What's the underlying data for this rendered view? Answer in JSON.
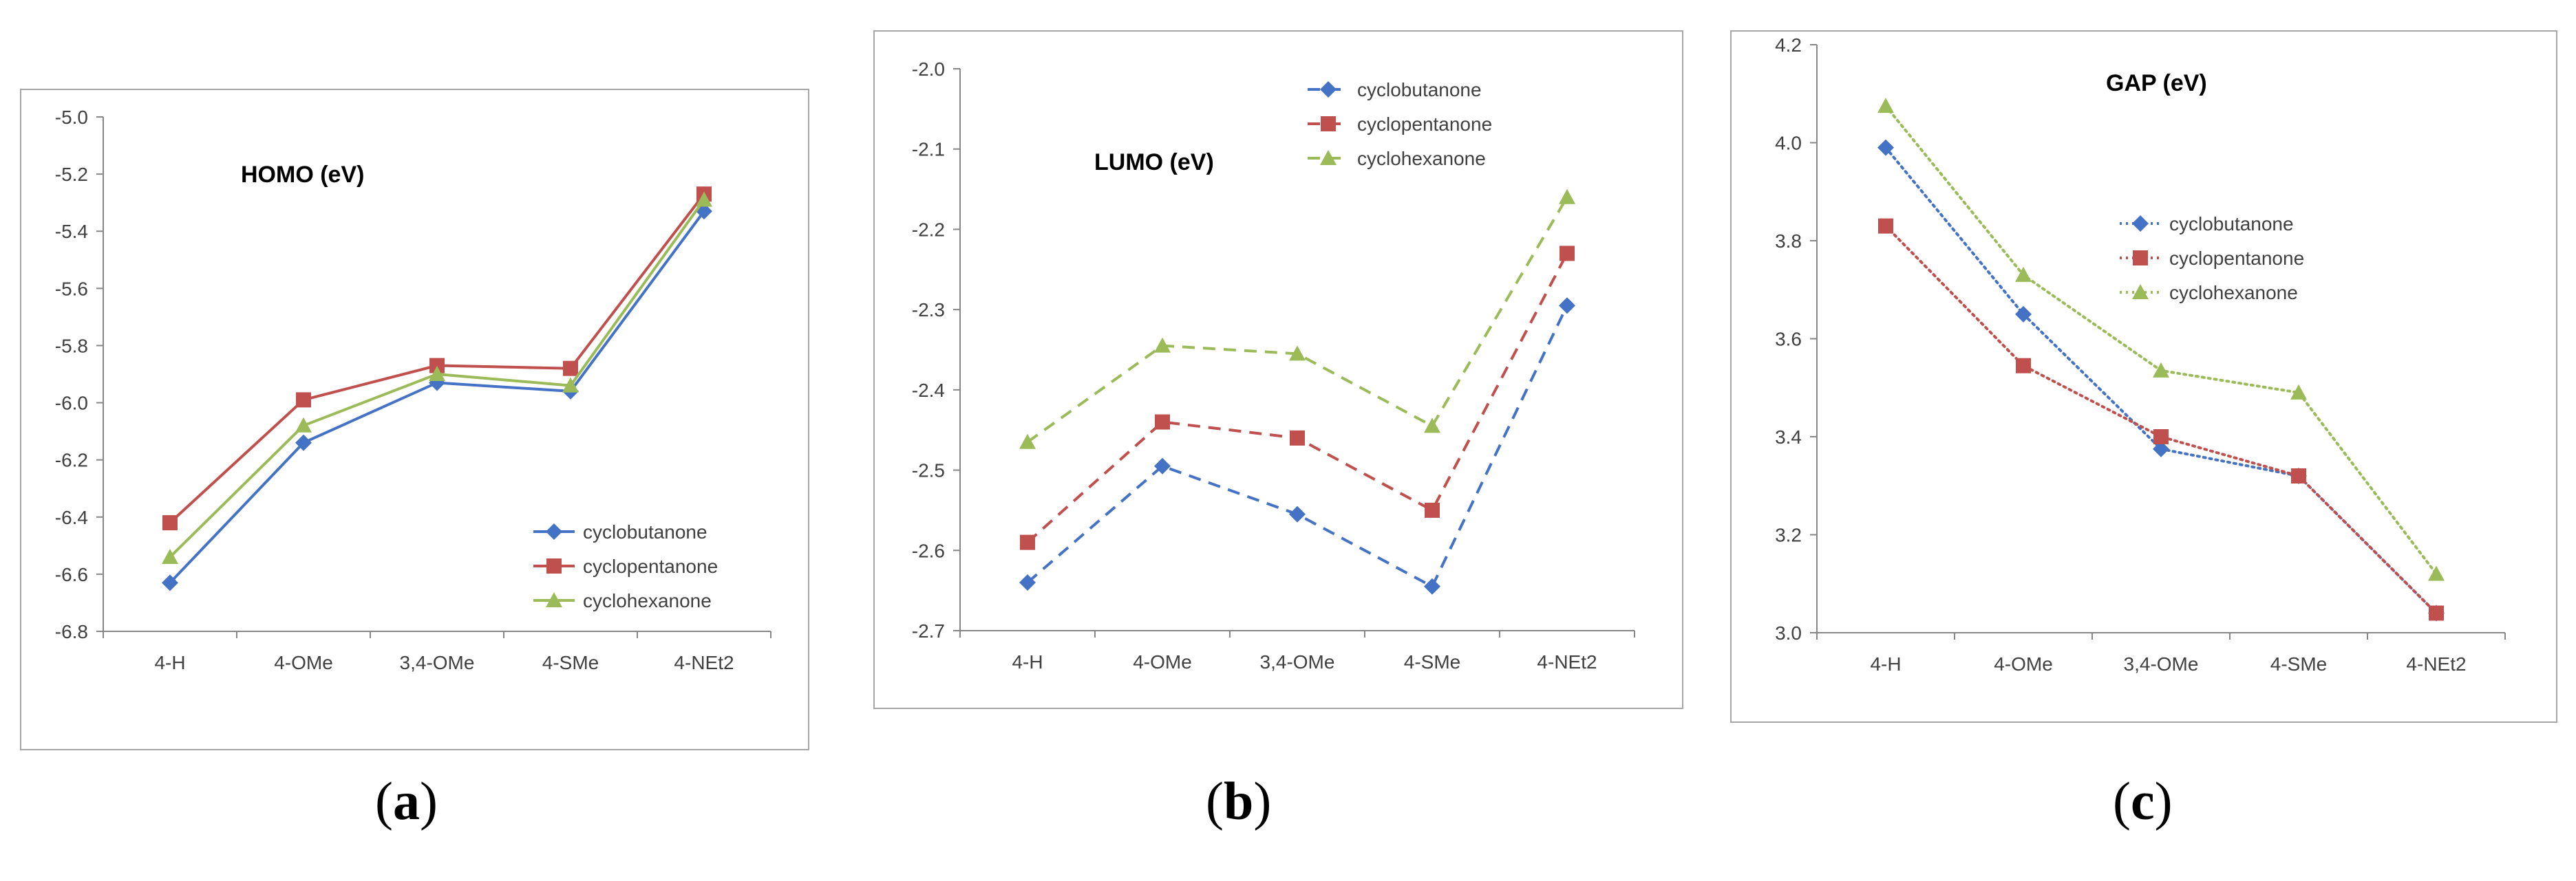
{
  "chart_data": [
    {
      "type": "line",
      "title": "HOMO (eV)",
      "categories": [
        "4-H",
        "4-OMe",
        "3,4-OMe",
        "4-SMe",
        "4-NEt2"
      ],
      "series": [
        {
          "name": "cyclobutanone",
          "color": "#4472c4",
          "marker": "diamond",
          "dash": "solid",
          "values": [
            -6.63,
            -6.14,
            -5.93,
            -5.96,
            -5.33
          ]
        },
        {
          "name": "cyclopentanone",
          "color": "#c0504d",
          "marker": "square",
          "dash": "solid",
          "values": [
            -6.42,
            -5.99,
            -5.87,
            -5.88,
            -5.27
          ]
        },
        {
          "name": "cyclohexanone",
          "color": "#9bbb59",
          "marker": "triangle",
          "dash": "solid",
          "values": [
            -6.54,
            -6.08,
            -5.9,
            -5.94,
            -5.29
          ]
        }
      ],
      "ylim": [
        -6.8,
        -5.0
      ],
      "yticks": [
        "-6.8",
        "-6.6",
        "-6.4",
        "-6.2",
        "-6.0",
        "-5.8",
        "-5.6",
        "-5.4",
        "-5.2",
        "-5.0"
      ],
      "legend_position": "bottom-right",
      "caption_letter": "a"
    },
    {
      "type": "line",
      "title": "LUMO (eV)",
      "categories": [
        "4-H",
        "4-OMe",
        "3,4-OMe",
        "4-SMe",
        "4-NEt2"
      ],
      "series": [
        {
          "name": "cyclobutanone",
          "color": "#4472c4",
          "marker": "diamond",
          "dash": "dashed",
          "values": [
            -2.64,
            -2.495,
            -2.555,
            -2.645,
            -2.295
          ]
        },
        {
          "name": "cyclopentanone",
          "color": "#c0504d",
          "marker": "square",
          "dash": "dashed",
          "values": [
            -2.59,
            -2.44,
            -2.46,
            -2.55,
            -2.23
          ]
        },
        {
          "name": "cyclohexanone",
          "color": "#9bbb59",
          "marker": "triangle",
          "dash": "dashed",
          "values": [
            -2.465,
            -2.345,
            -2.355,
            -2.445,
            -2.16
          ]
        }
      ],
      "ylim": [
        -2.7,
        -2.0
      ],
      "yticks": [
        "-2.7",
        "-2.6",
        "-2.5",
        "-2.4",
        "-2.3",
        "-2.2",
        "-2.1",
        "-2.0"
      ],
      "legend_position": "top-right",
      "caption_letter": "b"
    },
    {
      "type": "line",
      "title": "GAP (eV)",
      "categories": [
        "4-H",
        "4-OMe",
        "3,4-OMe",
        "4-SMe",
        "4-NEt2"
      ],
      "series": [
        {
          "name": "cyclobutanone",
          "color": "#4472c4",
          "marker": "diamond",
          "dash": "dotted",
          "values": [
            3.99,
            3.65,
            3.375,
            3.32,
            3.04
          ]
        },
        {
          "name": "cyclopentanone",
          "color": "#c0504d",
          "marker": "square",
          "dash": "dotted",
          "values": [
            3.83,
            3.545,
            3.4,
            3.32,
            3.04
          ]
        },
        {
          "name": "cyclohexanone",
          "color": "#9bbb59",
          "marker": "triangle",
          "dash": "dotted",
          "values": [
            4.075,
            3.73,
            3.535,
            3.49,
            3.12
          ]
        }
      ],
      "ylim": [
        3.0,
        4.2
      ],
      "yticks": [
        "3.0",
        "3.2",
        "3.4",
        "3.6",
        "3.8",
        "4.0",
        "4.2"
      ],
      "legend_position": "middle-right",
      "caption_letter": "c"
    }
  ]
}
